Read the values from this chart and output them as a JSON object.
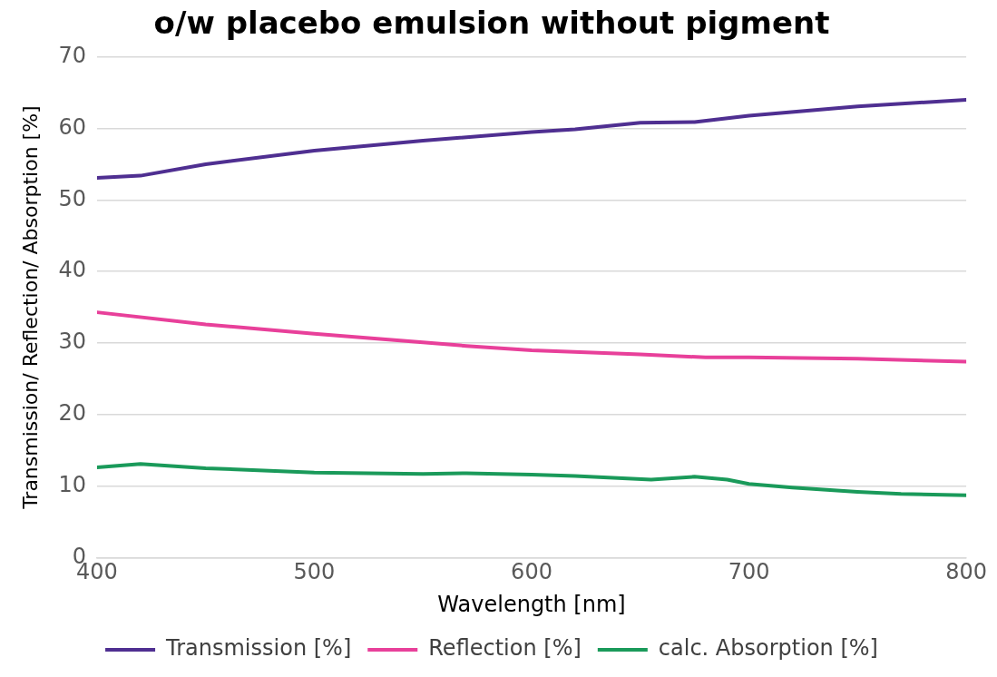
{
  "chart_data": {
    "type": "line",
    "title": "o/w placebo emulsion without pigment",
    "xlabel": "Wavelength [nm]",
    "ylabel": "Transmission/ Reflection/ Absorption [%]",
    "xlim": [
      400,
      800
    ],
    "xticks": [
      400,
      500,
      600,
      700,
      800
    ],
    "ylim": [
      0,
      70
    ],
    "yticks": [
      0,
      10,
      20,
      30,
      40,
      50,
      60,
      70
    ],
    "grid": "y",
    "legend": "bottom",
    "marker": "none",
    "line_style": "solid",
    "series": [
      {
        "name": "Transmission [%]",
        "color": "#4f2f91",
        "x": [
          400,
          420,
          450,
          500,
          550,
          600,
          620,
          650,
          675,
          700,
          750,
          800
        ],
        "values": [
          53.1,
          53.4,
          55,
          56.9,
          58.3,
          59.5,
          59.9,
          60.8,
          60.9,
          61.8,
          63.1,
          64
        ]
      },
      {
        "name": "Reflection [%]",
        "color": "#e8409a",
        "x": [
          400,
          450,
          500,
          550,
          570,
          600,
          650,
          680,
          700,
          750,
          800
        ],
        "values": [
          34.3,
          32.6,
          31.3,
          30.1,
          29.6,
          29,
          28.4,
          28,
          28,
          27.8,
          27.4
        ]
      },
      {
        "name": "calc. Absorption [%]",
        "color": "#1a9a5a",
        "x": [
          400,
          420,
          450,
          500,
          550,
          570,
          600,
          620,
          655,
          675,
          690,
          700,
          720,
          750,
          770,
          800
        ],
        "values": [
          12.6,
          13.1,
          12.5,
          11.9,
          11.7,
          11.8,
          11.6,
          11.4,
          10.9,
          11.3,
          10.9,
          10.3,
          9.8,
          9.2,
          8.9,
          8.7
        ]
      }
    ]
  }
}
